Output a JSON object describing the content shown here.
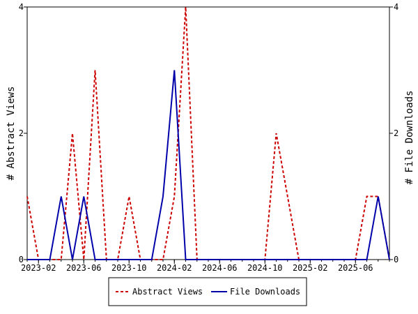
{
  "chart_data": {
    "type": "line",
    "title": "",
    "ylabel_left": "# Abstract Views",
    "ylabel_right": "# File Downloads",
    "ylim": [
      0,
      4
    ],
    "y_ticks_left": [
      "0",
      "2",
      "4"
    ],
    "y_ticks_right": [
      "0",
      "2",
      "4"
    ],
    "x_tick_labels": [
      "2023-02",
      "2023-06",
      "2023-10",
      "2024-02",
      "2024-06",
      "2024-10",
      "2025-02",
      "2025-06"
    ],
    "x": [
      "2023-01",
      "2023-02",
      "2023-03",
      "2023-04",
      "2023-05",
      "2023-06",
      "2023-07",
      "2023-08",
      "2023-09",
      "2023-10",
      "2023-11",
      "2023-12",
      "2024-01",
      "2024-02",
      "2024-03",
      "2024-04",
      "2024-05",
      "2024-06",
      "2024-07",
      "2024-08",
      "2024-09",
      "2024-10",
      "2024-11",
      "2024-12",
      "2025-01",
      "2025-02",
      "2025-03",
      "2025-04",
      "2025-05",
      "2025-06",
      "2025-07",
      "2025-08",
      "2025-09"
    ],
    "legend_position": "bottom",
    "series": [
      {
        "name": "Abstract Views",
        "color": "#cc0000",
        "style": "dashed",
        "values": [
          1,
          0,
          0,
          0,
          2,
          0,
          3,
          0,
          0,
          1,
          0,
          0,
          0,
          1,
          4,
          0,
          0,
          0,
          0,
          0,
          0,
          0,
          2,
          1,
          0,
          0,
          0,
          0,
          0,
          0,
          1,
          1,
          0
        ]
      },
      {
        "name": "File Downloads",
        "color": "#0000aa",
        "style": "solid",
        "values": [
          0,
          0,
          0,
          1,
          0,
          1,
          0,
          0,
          0,
          0,
          0,
          0,
          1,
          3,
          0,
          0,
          0,
          0,
          0,
          0,
          0,
          0,
          0,
          0,
          0,
          0,
          0,
          0,
          0,
          0,
          0,
          1,
          0
        ]
      }
    ]
  }
}
